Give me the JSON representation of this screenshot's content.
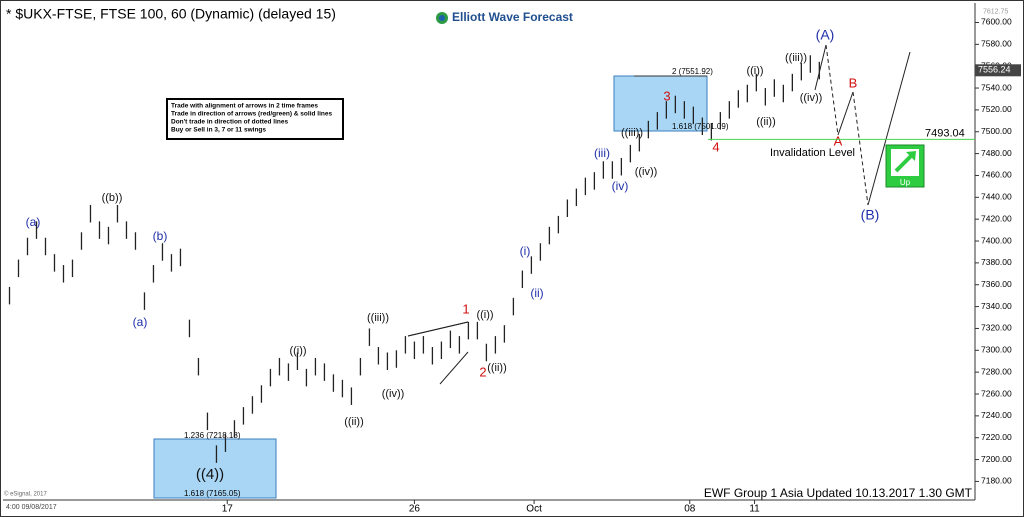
{
  "chart_data": {
    "type": "ohlc",
    "title": "* $UKX-FTSE, FTSE 100, 60 (Dynamic) (delayed 15)",
    "logo": "Elliott Wave Forecast",
    "footer": "EWF Group 1 Asia Updated 10.13.2017 1.30 GMT",
    "copyright": "© eSignal, 2017",
    "start_time": "4:00 09/08/2017",
    "rules": [
      "Trade with alignment of arrows in 2 time frames",
      "Trade in direction of arrows (red/green) & solid lines",
      "Don't trade in direction of dotted lines",
      "Buy or Sell in 3, 7 or 11 swings"
    ],
    "fib_labels": [
      "2 (7551.92)",
      "1.618 (7501.09)",
      "1.236 (7218.18)",
      "1.618 (7165.05)"
    ],
    "invalidation_text": "Invalidation Level",
    "invalidation_level": 7493.04,
    "last_price": 7556.24,
    "top_price": 7612.75,
    "signal": "Up",
    "annotations": [
      "(a)",
      "((b))",
      "(b)",
      "(a)",
      "((4))",
      "((i))",
      "((ii))",
      "((iii))",
      "((iv))",
      "1",
      "((i))",
      "2",
      "((ii))",
      "(i)",
      "(ii)",
      "(iii)",
      "(iv)",
      "((iii))",
      "((iv))",
      "3",
      "4",
      "((i))",
      "((ii))",
      "((iii))",
      "((iv))",
      "(A)",
      "B",
      "A",
      "(B)"
    ],
    "high": [
      7358,
      7383,
      7403,
      7418,
      7403,
      7388,
      7378,
      7383,
      7408,
      7433,
      7418,
      7413,
      7433,
      7418,
      7408,
      7353,
      7378,
      7398,
      7388,
      7393,
      7328,
      7293,
      7243,
      7213,
      7223,
      7236,
      7248,
      7258,
      7268,
      7283,
      7293,
      7288,
      7298,
      7283,
      7293,
      7288,
      7278,
      7273,
      7266,
      7293,
      7320,
      7303,
      7298,
      7300,
      7313,
      7308,
      7313,
      7303,
      7308,
      7318,
      7313,
      7326,
      7326,
      7306,
      7313,
      7323,
      7348,
      7373,
      7386,
      7398,
      7413,
      7423,
      7438,
      7448,
      7458,
      7463,
      7473,
      7473,
      7476,
      7488,
      7498,
      7510,
      7518,
      7528,
      7533,
      7528,
      7523,
      7513,
      7508,
      7518,
      7528,
      7538,
      7543,
      7553,
      7540,
      7548,
      7543,
      7553,
      7563,
      7570,
      7564
    ],
    "low": [
      7342,
      7367,
      7387,
      7402,
      7387,
      7372,
      7362,
      7367,
      7392,
      7417,
      7402,
      7397,
      7417,
      7402,
      7392,
      7337,
      7362,
      7382,
      7372,
      7377,
      7312,
      7277,
      7227,
      7197,
      7207,
      7220,
      7232,
      7242,
      7252,
      7267,
      7277,
      7272,
      7282,
      7267,
      7277,
      7272,
      7262,
      7257,
      7250,
      7277,
      7304,
      7287,
      7282,
      7284,
      7297,
      7292,
      7297,
      7287,
      7292,
      7302,
      7297,
      7310,
      7310,
      7290,
      7297,
      7307,
      7332,
      7357,
      7370,
      7382,
      7397,
      7407,
      7422,
      7432,
      7442,
      7447,
      7457,
      7457,
      7460,
      7472,
      7482,
      7494,
      7502,
      7512,
      7517,
      7512,
      7507,
      7497,
      7492,
      7502,
      7512,
      7522,
      7527,
      7537,
      7524,
      7532,
      7527,
      7537,
      7547,
      7554,
      7548
    ],
    "color": "#222222",
    "xlim": [
      -0.5,
      107.3
    ],
    "xticks": [
      {
        "value": 24.2,
        "label": "17"
      },
      {
        "value": 45,
        "label": "26"
      },
      {
        "value": 58.3,
        "label": "Oct"
      },
      {
        "value": 75.6,
        "label": "08"
      },
      {
        "value": 82.8,
        "label": "11"
      }
    ],
    "ylim": [
      7163,
      7616
    ],
    "yticks": [
      {
        "value": 7180,
        "label": "7180.00"
      },
      {
        "value": 7200,
        "label": "7200.00"
      },
      {
        "value": 7220,
        "label": "7220.00"
      },
      {
        "value": 7240,
        "label": "7240.00"
      },
      {
        "value": 7260,
        "label": "7260.00"
      },
      {
        "value": 7280,
        "label": "7280.00"
      },
      {
        "value": 7300,
        "label": "7300.00"
      },
      {
        "value": 7320,
        "label": "7320.00"
      },
      {
        "value": 7340,
        "label": "7340.00"
      },
      {
        "value": 7360,
        "label": "7360.00"
      },
      {
        "value": 7380,
        "label": "7380.00"
      },
      {
        "value": 7400,
        "label": "7400.00"
      },
      {
        "value": 7420,
        "label": "7420.00"
      },
      {
        "value": 7440,
        "label": "7440.00"
      },
      {
        "value": 7460,
        "label": "7460.00"
      },
      {
        "value": 7480,
        "label": "7480.00"
      },
      {
        "value": 7500,
        "label": "7500.00"
      },
      {
        "value": 7520,
        "label": "7520.00"
      },
      {
        "value": 7540,
        "label": "7540.00"
      },
      {
        "value": 7560,
        "label": "7560.00"
      },
      {
        "value": 7580,
        "label": "7580.00"
      },
      {
        "value": 7600,
        "label": "7600.00"
      }
    ]
  }
}
